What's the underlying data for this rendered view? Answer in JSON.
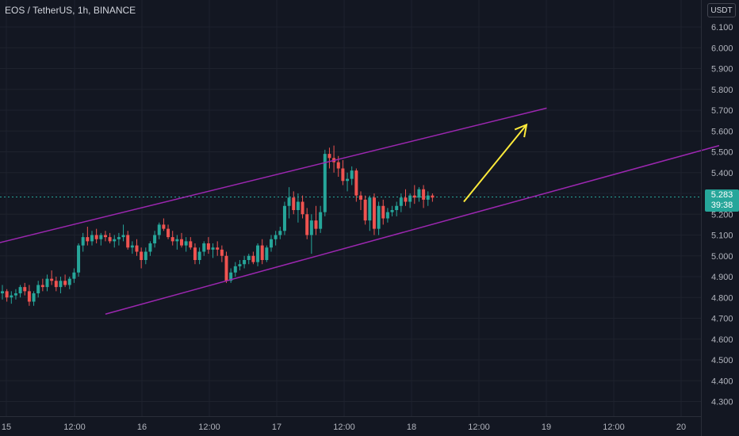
{
  "header": {
    "title": "EOS / TetherUS, 1h, BINANCE"
  },
  "price_axis": {
    "currency": "USDT"
  },
  "last_price": {
    "value": "5.283",
    "countdown": "39:38",
    "color": "#26a69a"
  },
  "colors": {
    "up": "#26a69a",
    "down": "#ef5350",
    "channel": "#9c27b0",
    "arrow": "#ffeb3b"
  },
  "chart_data": {
    "type": "candlestick",
    "ylim": [
      4.25,
      6.2
    ],
    "yticks": [
      "6.100",
      "6.000",
      "5.900",
      "5.800",
      "5.700",
      "5.600",
      "5.500",
      "5.400",
      "5.300",
      "5.200",
      "5.100",
      "5.000",
      "4.900",
      "4.800",
      "4.700",
      "4.600",
      "4.500",
      "4.400",
      "4.300"
    ],
    "xlabels": [
      "15",
      "12:00",
      "16",
      "12:00",
      "17",
      "12:00",
      "18",
      "12:00",
      "19",
      "12:00",
      "20"
    ],
    "candles": [
      [
        4.82,
        4.86,
        4.79,
        4.83
      ],
      [
        4.83,
        4.84,
        4.78,
        4.8
      ],
      [
        4.8,
        4.83,
        4.77,
        4.81
      ],
      [
        4.81,
        4.84,
        4.79,
        4.82
      ],
      [
        4.82,
        4.86,
        4.8,
        4.85
      ],
      [
        4.85,
        4.87,
        4.81,
        4.83
      ],
      [
        4.83,
        4.86,
        4.76,
        4.78
      ],
      [
        4.78,
        4.83,
        4.76,
        4.82
      ],
      [
        4.82,
        4.88,
        4.8,
        4.86
      ],
      [
        4.86,
        4.89,
        4.83,
        4.85
      ],
      [
        4.85,
        4.91,
        4.83,
        4.89
      ],
      [
        4.89,
        4.93,
        4.86,
        4.88
      ],
      [
        4.88,
        4.9,
        4.83,
        4.85
      ],
      [
        4.85,
        4.9,
        4.82,
        4.88
      ],
      [
        4.88,
        4.91,
        4.85,
        4.86
      ],
      [
        4.86,
        4.9,
        4.84,
        4.89
      ],
      [
        4.89,
        4.94,
        4.87,
        4.92
      ],
      [
        4.92,
        5.06,
        4.9,
        5.05
      ],
      [
        5.05,
        5.11,
        5.02,
        5.09
      ],
      [
        5.09,
        5.14,
        5.05,
        5.07
      ],
      [
        5.07,
        5.12,
        5.05,
        5.1
      ],
      [
        5.1,
        5.13,
        5.06,
        5.08
      ],
      [
        5.08,
        5.11,
        5.05,
        5.1
      ],
      [
        5.1,
        5.12,
        5.07,
        5.09
      ],
      [
        5.09,
        5.11,
        5.06,
        5.07
      ],
      [
        5.07,
        5.1,
        5.04,
        5.08
      ],
      [
        5.08,
        5.11,
        5.05,
        5.09
      ],
      [
        5.09,
        5.15,
        5.07,
        5.1
      ],
      [
        5.1,
        5.12,
        5.03,
        5.04
      ],
      [
        5.04,
        5.07,
        5.01,
        5.05
      ],
      [
        5.05,
        5.08,
        5.0,
        5.02
      ],
      [
        5.02,
        5.04,
        4.94,
        4.98
      ],
      [
        4.98,
        5.04,
        4.96,
        5.02
      ],
      [
        5.02,
        5.07,
        5.0,
        5.06
      ],
      [
        5.06,
        5.12,
        5.04,
        5.1
      ],
      [
        5.1,
        5.16,
        5.08,
        5.15
      ],
      [
        5.15,
        5.18,
        5.12,
        5.13
      ],
      [
        5.13,
        5.15,
        5.08,
        5.09
      ],
      [
        5.09,
        5.12,
        5.05,
        5.07
      ],
      [
        5.07,
        5.1,
        5.03,
        5.08
      ],
      [
        5.08,
        5.11,
        5.04,
        5.05
      ],
      [
        5.05,
        5.09,
        5.02,
        5.07
      ],
      [
        5.07,
        5.09,
        5.03,
        5.04
      ],
      [
        5.04,
        5.06,
        4.96,
        4.98
      ],
      [
        4.98,
        5.04,
        4.96,
        5.02
      ],
      [
        5.02,
        5.07,
        5.0,
        5.06
      ],
      [
        5.06,
        5.09,
        5.01,
        5.03
      ],
      [
        5.03,
        5.06,
        4.99,
        5.04
      ],
      [
        5.04,
        5.07,
        5.0,
        5.03
      ],
      [
        5.03,
        5.05,
        4.97,
        5.0
      ],
      [
        5.0,
        5.02,
        4.87,
        4.88
      ],
      [
        4.88,
        4.94,
        4.87,
        4.92
      ],
      [
        4.92,
        4.97,
        4.9,
        4.95
      ],
      [
        4.95,
        4.98,
        4.93,
        4.96
      ],
      [
        4.96,
        5.0,
        4.94,
        4.98
      ],
      [
        4.98,
        5.01,
        4.96,
        5.0
      ],
      [
        5.0,
        5.02,
        4.96,
        4.97
      ],
      [
        4.97,
        5.06,
        4.95,
        5.05
      ],
      [
        5.05,
        5.08,
        4.96,
        4.98
      ],
      [
        4.98,
        5.05,
        4.97,
        5.04
      ],
      [
        5.04,
        5.1,
        5.02,
        5.08
      ],
      [
        5.08,
        5.12,
        5.05,
        5.1
      ],
      [
        5.1,
        5.14,
        5.08,
        5.12
      ],
      [
        5.12,
        5.26,
        5.1,
        5.24
      ],
      [
        5.24,
        5.33,
        5.18,
        5.28
      ],
      [
        5.28,
        5.31,
        5.2,
        5.22
      ],
      [
        5.22,
        5.3,
        5.16,
        5.26
      ],
      [
        5.26,
        5.29,
        5.18,
        5.2
      ],
      [
        5.2,
        5.23,
        5.08,
        5.1
      ],
      [
        5.1,
        5.2,
        5.01,
        5.17
      ],
      [
        5.17,
        5.24,
        5.1,
        5.13
      ],
      [
        5.13,
        5.24,
        5.11,
        5.21
      ],
      [
        5.21,
        5.51,
        5.19,
        5.49
      ],
      [
        5.49,
        5.52,
        5.42,
        5.47
      ],
      [
        5.47,
        5.53,
        5.4,
        5.45
      ],
      [
        5.45,
        5.48,
        5.38,
        5.42
      ],
      [
        5.42,
        5.46,
        5.34,
        5.36
      ],
      [
        5.36,
        5.4,
        5.31,
        5.37
      ],
      [
        5.37,
        5.43,
        5.34,
        5.41
      ],
      [
        5.41,
        5.42,
        5.26,
        5.29
      ],
      [
        5.29,
        5.31,
        5.22,
        5.27
      ],
      [
        5.27,
        5.29,
        5.15,
        5.17
      ],
      [
        5.17,
        5.29,
        5.12,
        5.28
      ],
      [
        5.28,
        5.3,
        5.1,
        5.13
      ],
      [
        5.13,
        5.26,
        5.1,
        5.24
      ],
      [
        5.24,
        5.27,
        5.15,
        5.18
      ],
      [
        5.18,
        5.23,
        5.16,
        5.21
      ],
      [
        5.21,
        5.24,
        5.19,
        5.22
      ],
      [
        5.22,
        5.26,
        5.19,
        5.24
      ],
      [
        5.24,
        5.3,
        5.21,
        5.28
      ],
      [
        5.28,
        5.32,
        5.24,
        5.26
      ],
      [
        5.26,
        5.3,
        5.23,
        5.29
      ],
      [
        5.29,
        5.34,
        5.25,
        5.28
      ],
      [
        5.28,
        5.33,
        5.26,
        5.32
      ],
      [
        5.32,
        5.34,
        5.23,
        5.27
      ],
      [
        5.27,
        5.31,
        5.24,
        5.29
      ],
      [
        5.29,
        5.3,
        5.26,
        5.28
      ]
    ],
    "channel": {
      "upper": [
        [
          -5,
          5.04
        ],
        [
          121.5,
          5.71
        ]
      ],
      "lower": [
        [
          23,
          4.72
        ],
        [
          160,
          5.53
        ]
      ]
    },
    "arrow": [
      [
        103,
        5.26
      ],
      [
        117,
        5.63
      ]
    ]
  }
}
